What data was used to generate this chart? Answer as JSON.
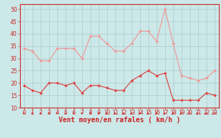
{
  "x": [
    0,
    1,
    2,
    3,
    4,
    5,
    6,
    7,
    8,
    9,
    10,
    11,
    12,
    13,
    14,
    15,
    16,
    17,
    18,
    19,
    20,
    21,
    22,
    23
  ],
  "wind_avg": [
    19,
    17,
    16,
    20,
    20,
    19,
    20,
    16,
    19,
    19,
    18,
    17,
    17,
    21,
    23,
    25,
    23,
    24,
    13,
    13,
    13,
    13,
    16,
    15
  ],
  "wind_gust": [
    34,
    33,
    29,
    29,
    34,
    34,
    34,
    30,
    39,
    39,
    36,
    33,
    33,
    36,
    41,
    41,
    37,
    50,
    36,
    23,
    22,
    21,
    22,
    25
  ],
  "bg_color": "#cce8e8",
  "grid_color": "#aacccc",
  "line_color_avg": "#dd4444",
  "line_color_gust": "#ee9999",
  "axis_label_color": "#cc2222",
  "tick_label_color": "#cc2222",
  "xlabel": "Vent moyen/en rafales ( km/h )",
  "ylim": [
    10,
    52
  ],
  "yticks": [
    10,
    15,
    20,
    25,
    30,
    35,
    40,
    45,
    50
  ],
  "tick_fontsize": 5.5,
  "label_fontsize": 7.0
}
